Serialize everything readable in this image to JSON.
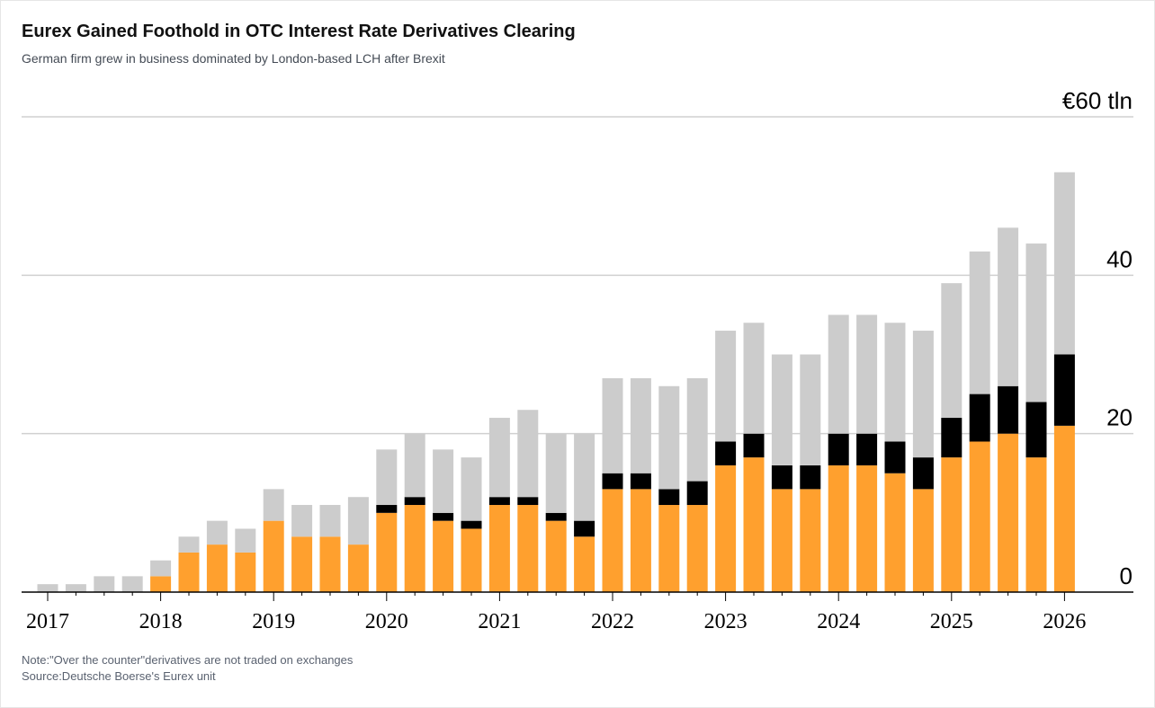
{
  "header": {
    "title": "Eurex Gained Foothold in OTC Interest Rate Derivatives Clearing",
    "subtitle": "German firm grew in business dominated by London-based LCH after Brexit"
  },
  "footer": {
    "note": "Note:\"Over the counter\"derivatives are not traded on exchanges",
    "source": "Source:Deutsche Boerse's Eurex unit"
  },
  "colors": {
    "orange": "#ffa02e",
    "black": "#000000",
    "gray": "#cccccc",
    "grid": "#d0d0d0",
    "axis": "#000000"
  },
  "chart_data": {
    "type": "bar",
    "stacked": true,
    "ylim": [
      0,
      60
    ],
    "yticks": [
      {
        "value": 60,
        "label": "€60 tln"
      },
      {
        "value": 40,
        "label": "40"
      },
      {
        "value": 20,
        "label": "20"
      },
      {
        "value": 0,
        "label": "0"
      }
    ],
    "x_year_labels": [
      "2017",
      "2018",
      "2019",
      "2020",
      "2021",
      "2022",
      "2023",
      "2024",
      "2025",
      "2026"
    ],
    "grid": true,
    "legend": "none",
    "categories": [
      "2017 Q1",
      "2017 Q2",
      "2017 Q3",
      "2017 Q4",
      "2018 Q1",
      "2018 Q2",
      "2018 Q3",
      "2018 Q4",
      "2019 Q1",
      "2019 Q2",
      "2019 Q3",
      "2019 Q4",
      "2020 Q1",
      "2020 Q2",
      "2020 Q3",
      "2020 Q4",
      "2021 Q1",
      "2021 Q2",
      "2021 Q3",
      "2021 Q4",
      "2022 Q1",
      "2022 Q2",
      "2022 Q3",
      "2022 Q4",
      "2023 Q1",
      "2023 Q2",
      "2023 Q3",
      "2023 Q4",
      "2024 Q1",
      "2024 Q2",
      "2024 Q3",
      "2024 Q4",
      "2025 Q1",
      "2025 Q2",
      "2025 Q3",
      "2025 Q4",
      "2026 Q1"
    ],
    "series": [
      {
        "color": "orange",
        "values": [
          0,
          0,
          0,
          0,
          2,
          5,
          6,
          5,
          9,
          7,
          7,
          6,
          10,
          11,
          9,
          8,
          11,
          11,
          9,
          7,
          13,
          13,
          11,
          11,
          16,
          17,
          13,
          13,
          16,
          16,
          15,
          13,
          17,
          19,
          20,
          17,
          21
        ]
      },
      {
        "color": "black",
        "values": [
          0,
          0,
          0,
          0,
          0,
          0,
          0,
          0,
          0,
          0,
          0,
          0,
          1,
          1,
          1,
          1,
          1,
          1,
          1,
          2,
          2,
          2,
          2,
          3,
          3,
          3,
          3,
          3,
          4,
          4,
          4,
          4,
          5,
          6,
          6,
          7,
          9
        ]
      },
      {
        "color": "gray",
        "values": [
          1,
          1,
          2,
          2,
          2,
          2,
          3,
          3,
          4,
          4,
          4,
          6,
          7,
          8,
          8,
          8,
          10,
          11,
          10,
          11,
          12,
          12,
          13,
          13,
          14,
          14,
          14,
          14,
          15,
          15,
          15,
          16,
          17,
          18,
          20,
          20,
          23
        ]
      }
    ]
  }
}
